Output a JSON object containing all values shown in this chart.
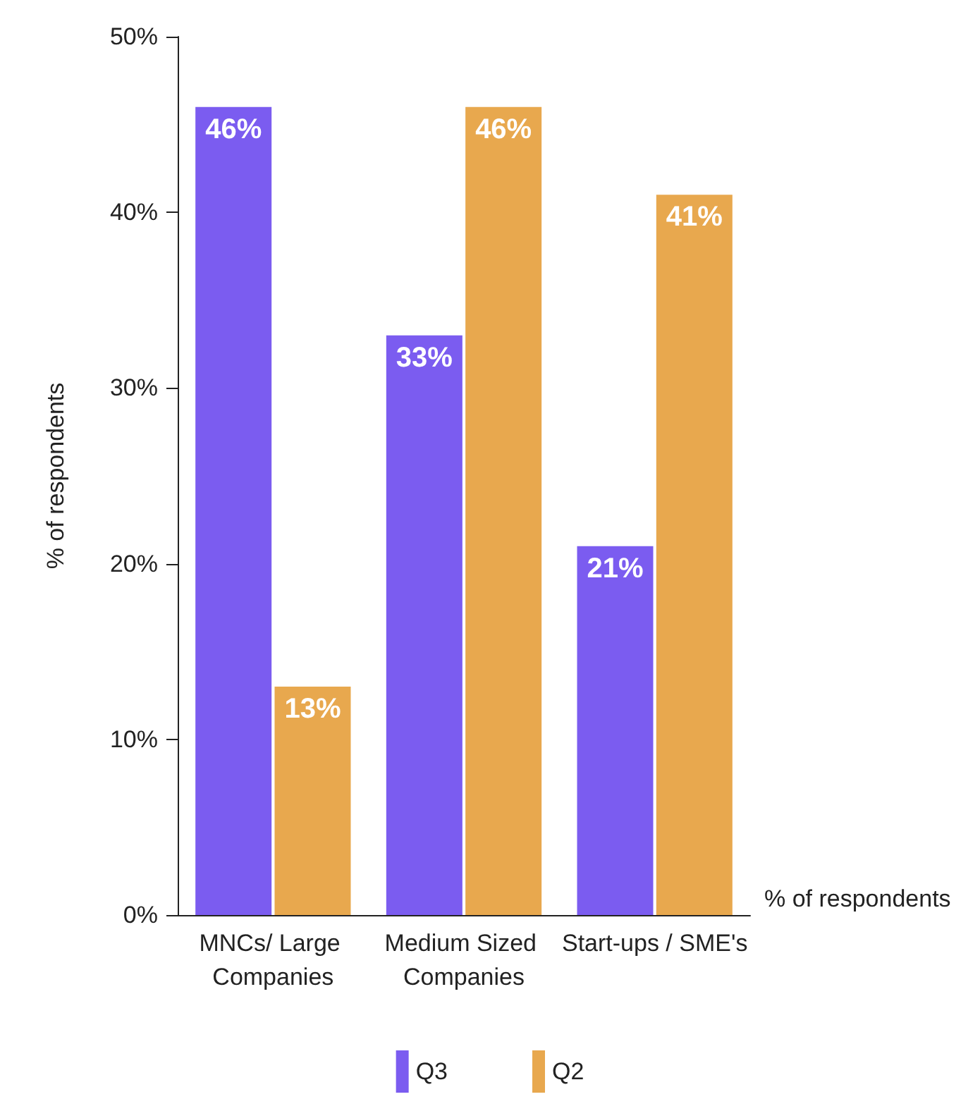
{
  "chart_data": {
    "type": "bar",
    "xlabel": "% of respondents",
    "ylabel": "% of respondents",
    "categories": [
      "MNCs/ Large Companies",
      "Medium Sized Companies",
      "Start-ups / SME's"
    ],
    "series": [
      {
        "name": "Q3",
        "color": "#7b5cf0",
        "values": [
          46,
          33,
          21
        ],
        "value_labels": [
          "46%",
          "33%",
          "21%"
        ]
      },
      {
        "name": "Q2",
        "color": "#e8a84e",
        "values": [
          13,
          46,
          41
        ],
        "value_labels": [
          "13%",
          "46%",
          "41%"
        ]
      }
    ],
    "ylim": [
      0,
      50
    ],
    "yticks": [
      {
        "value": 0,
        "label": "0%"
      },
      {
        "value": 10,
        "label": "10%"
      },
      {
        "value": 20,
        "label": "20%"
      },
      {
        "value": 30,
        "label": "30%"
      },
      {
        "value": 40,
        "label": "40%"
      },
      {
        "value": 50,
        "label": "50%"
      }
    ],
    "grid": false,
    "legend": "bottom"
  }
}
